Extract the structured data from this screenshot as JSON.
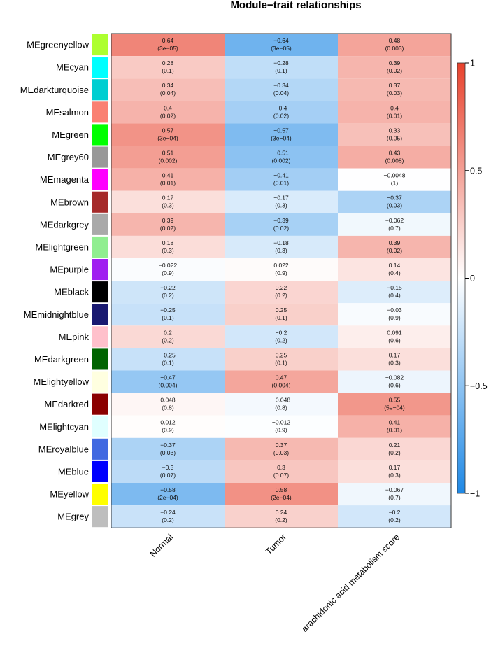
{
  "chart_data": {
    "type": "heatmap",
    "title": "Module−trait relationships",
    "columns": [
      "Normal",
      "Tumor",
      "arachidonic acid metabolism score"
    ],
    "rows": [
      {
        "name": "MEgreenyellow",
        "swatch": "#adff2f",
        "cor": [
          0.64,
          -0.64,
          0.48
        ],
        "cor_label": [
          "0.64",
          "−0.64",
          "0.48"
        ],
        "p_label": [
          "(3e−05)",
          "(3e−05)",
          "(0.003)"
        ]
      },
      {
        "name": "MEcyan",
        "swatch": "#00ffff",
        "cor": [
          0.28,
          -0.28,
          0.39
        ],
        "cor_label": [
          "0.28",
          "−0.28",
          "0.39"
        ],
        "p_label": [
          "(0.1)",
          "(0.1)",
          "(0.02)"
        ]
      },
      {
        "name": "MEdarkturquoise",
        "swatch": "#00ced1",
        "cor": [
          0.34,
          -0.34,
          0.37
        ],
        "cor_label": [
          "0.34",
          "−0.34",
          "0.37"
        ],
        "p_label": [
          "(0.04)",
          "(0.04)",
          "(0.03)"
        ]
      },
      {
        "name": "MEsalmon",
        "swatch": "#fa8072",
        "cor": [
          0.4,
          -0.4,
          0.4
        ],
        "cor_label": [
          "0.4",
          "−0.4",
          "0.4"
        ],
        "p_label": [
          "(0.02)",
          "(0.02)",
          "(0.01)"
        ]
      },
      {
        "name": "MEgreen",
        "swatch": "#00ff00",
        "cor": [
          0.57,
          -0.57,
          0.33
        ],
        "cor_label": [
          "0.57",
          "−0.57",
          "0.33"
        ],
        "p_label": [
          "(3e−04)",
          "(3e−04)",
          "(0.05)"
        ]
      },
      {
        "name": "MEgrey60",
        "swatch": "#999999",
        "cor": [
          0.51,
          -0.51,
          0.43
        ],
        "cor_label": [
          "0.51",
          "−0.51",
          "0.43"
        ],
        "p_label": [
          "(0.002)",
          "(0.002)",
          "(0.008)"
        ]
      },
      {
        "name": "MEmagenta",
        "swatch": "#ff00ff",
        "cor": [
          0.41,
          -0.41,
          -0.0048
        ],
        "cor_label": [
          "0.41",
          "−0.41",
          "−0.0048"
        ],
        "p_label": [
          "(0.01)",
          "(0.01)",
          "(1)"
        ]
      },
      {
        "name": "MEbrown",
        "swatch": "#a52a2a",
        "cor": [
          0.17,
          -0.17,
          -0.37
        ],
        "cor_label": [
          "0.17",
          "−0.17",
          "−0.37"
        ],
        "p_label": [
          "(0.3)",
          "(0.3)",
          "(0.03)"
        ]
      },
      {
        "name": "MEdarkgrey",
        "swatch": "#a9a9a9",
        "cor": [
          0.39,
          -0.39,
          -0.062
        ],
        "cor_label": [
          "0.39",
          "−0.39",
          "−0.062"
        ],
        "p_label": [
          "(0.02)",
          "(0.02)",
          "(0.7)"
        ]
      },
      {
        "name": "MElightgreen",
        "swatch": "#90ee90",
        "cor": [
          0.18,
          -0.18,
          0.39
        ],
        "cor_label": [
          "0.18",
          "−0.18",
          "0.39"
        ],
        "p_label": [
          "(0.3)",
          "(0.3)",
          "(0.02)"
        ]
      },
      {
        "name": "MEpurple",
        "swatch": "#a020f0",
        "cor": [
          -0.022,
          0.022,
          0.14
        ],
        "cor_label": [
          "−0.022",
          "0.022",
          "0.14"
        ],
        "p_label": [
          "(0.9)",
          "(0.9)",
          "(0.4)"
        ]
      },
      {
        "name": "MEblack",
        "swatch": "#000000",
        "cor": [
          -0.22,
          0.22,
          -0.15
        ],
        "cor_label": [
          "−0.22",
          "0.22",
          "−0.15"
        ],
        "p_label": [
          "(0.2)",
          "(0.2)",
          "(0.4)"
        ]
      },
      {
        "name": "MEmidnightblue",
        "swatch": "#191970",
        "cor": [
          -0.25,
          0.25,
          -0.03
        ],
        "cor_label": [
          "−0.25",
          "0.25",
          "−0.03"
        ],
        "p_label": [
          "(0.1)",
          "(0.1)",
          "(0.9)"
        ]
      },
      {
        "name": "MEpink",
        "swatch": "#ffc0cb",
        "cor": [
          0.2,
          -0.2,
          0.091
        ],
        "cor_label": [
          "0.2",
          "−0.2",
          "0.091"
        ],
        "p_label": [
          "(0.2)",
          "(0.2)",
          "(0.6)"
        ]
      },
      {
        "name": "MEdarkgreen",
        "swatch": "#006400",
        "cor": [
          -0.25,
          0.25,
          0.17
        ],
        "cor_label": [
          "−0.25",
          "0.25",
          "0.17"
        ],
        "p_label": [
          "(0.1)",
          "(0.1)",
          "(0.3)"
        ]
      },
      {
        "name": "MElightyellow",
        "swatch": "#ffffe0",
        "cor": [
          -0.47,
          0.47,
          -0.082
        ],
        "cor_label": [
          "−0.47",
          "0.47",
          "−0.082"
        ],
        "p_label": [
          "(0.004)",
          "(0.004)",
          "(0.6)"
        ]
      },
      {
        "name": "MEdarkred",
        "swatch": "#8b0000",
        "cor": [
          0.048,
          -0.048,
          0.55
        ],
        "cor_label": [
          "0.048",
          "−0.048",
          "0.55"
        ],
        "p_label": [
          "(0.8)",
          "(0.8)",
          "(5e−04)"
        ]
      },
      {
        "name": "MElightcyan",
        "swatch": "#e0ffff",
        "cor": [
          0.012,
          -0.012,
          0.41
        ],
        "cor_label": [
          "0.012",
          "−0.012",
          "0.41"
        ],
        "p_label": [
          "(0.9)",
          "(0.9)",
          "(0.01)"
        ]
      },
      {
        "name": "MEroyalblue",
        "swatch": "#4169e1",
        "cor": [
          -0.37,
          0.37,
          0.21
        ],
        "cor_label": [
          "−0.37",
          "0.37",
          "0.21"
        ],
        "p_label": [
          "(0.03)",
          "(0.03)",
          "(0.2)"
        ]
      },
      {
        "name": "MEblue",
        "swatch": "#0000ff",
        "cor": [
          -0.3,
          0.3,
          0.17
        ],
        "cor_label": [
          "−0.3",
          "0.3",
          "0.17"
        ],
        "p_label": [
          "(0.07)",
          "(0.07)",
          "(0.3)"
        ]
      },
      {
        "name": "MEyellow",
        "swatch": "#ffff00",
        "cor": [
          -0.58,
          0.58,
          -0.067
        ],
        "cor_label": [
          "−0.58",
          "0.58",
          "−0.067"
        ],
        "p_label": [
          "(2e−04)",
          "(2e−04)",
          "(0.7)"
        ]
      },
      {
        "name": "MEgrey",
        "swatch": "#bebebe",
        "cor": [
          -0.24,
          0.24,
          -0.2
        ],
        "cor_label": [
          "−0.24",
          "0.24",
          "−0.2"
        ],
        "p_label": [
          "(0.2)",
          "(0.2)",
          "(0.2)"
        ]
      }
    ],
    "colorbar": {
      "range": [
        -1,
        1
      ],
      "ticks": [
        1,
        0.5,
        0,
        -0.5,
        -1
      ],
      "tick_labels": [
        "1",
        "0.5",
        "0",
        "−0.5",
        "−1"
      ],
      "low_color": "#1e88e5",
      "mid_color": "#ffffff",
      "high_color": "#e8412c"
    }
  }
}
